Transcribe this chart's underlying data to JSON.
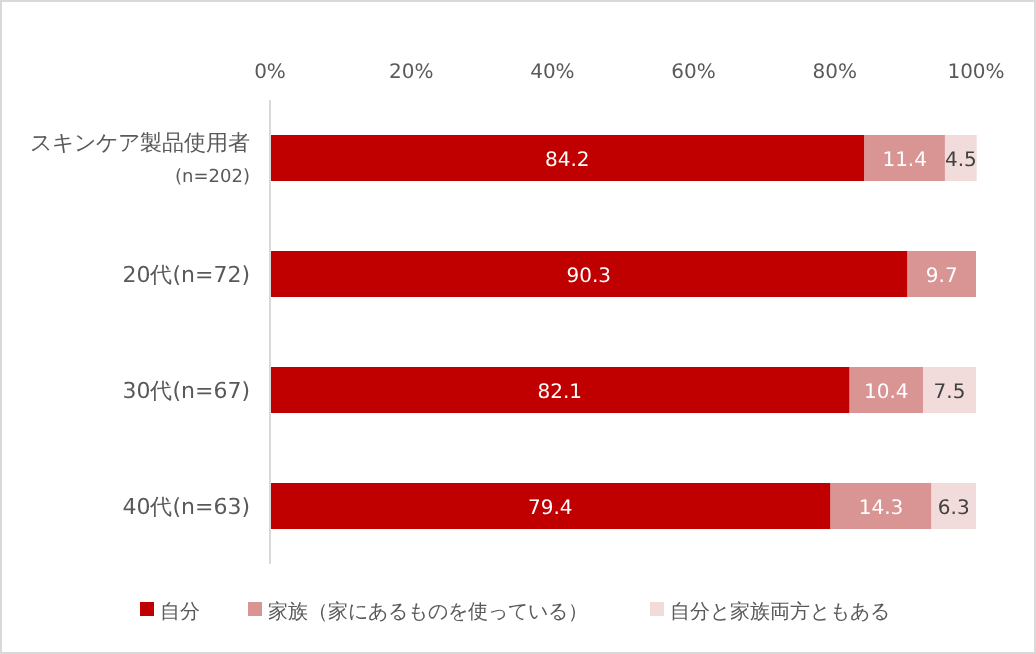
{
  "chart_data": {
    "type": "bar",
    "orientation": "horizontal",
    "stacked": true,
    "data_labels": true,
    "legend": "bottom",
    "categories": [
      "スキンケア製品使用者\n(n=202)",
      "20代(n=72)",
      "30代(n=67)",
      "40代(n=63)"
    ],
    "series": [
      {
        "name": "自分",
        "color": "#c00000",
        "values": [
          84.2,
          90.3,
          82.1,
          79.4
        ]
      },
      {
        "name": "家族（家にあるものを使っている）",
        "color": "#d99594",
        "values": [
          11.4,
          9.7,
          10.4,
          14.3
        ]
      },
      {
        "name": "自分と家族両方ともある",
        "color": "#f2dcdb",
        "values": [
          4.5,
          null,
          7.5,
          6.3
        ]
      }
    ],
    "xlim": [
      0,
      100
    ],
    "xticks": [
      {
        "value": 0,
        "label": "0%"
      },
      {
        "value": 20,
        "label": "20%"
      },
      {
        "value": 40,
        "label": "40%"
      },
      {
        "value": 60,
        "label": "60%"
      },
      {
        "value": 80,
        "label": "80%"
      },
      {
        "value": 100,
        "label": "100%"
      }
    ]
  }
}
